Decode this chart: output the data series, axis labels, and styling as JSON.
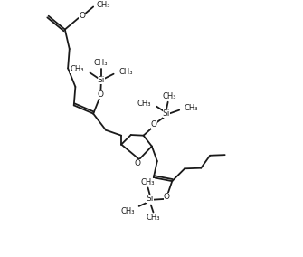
{
  "background": "#ffffff",
  "line_color": "#1a1a1a",
  "line_width": 1.3,
  "font_size": 6.5,
  "fig_width": 3.35,
  "fig_height": 2.84,
  "xlim": [
    0,
    10
  ],
  "ylim": [
    0,
    8.5
  ]
}
